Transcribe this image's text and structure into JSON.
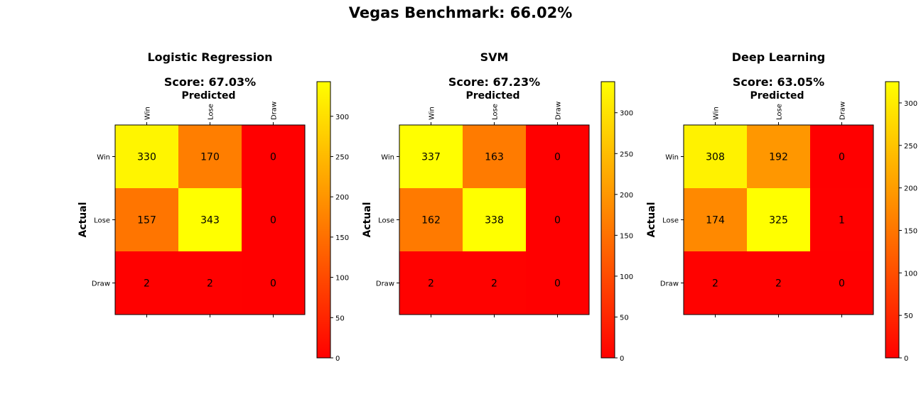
{
  "suptitle": "Vegas Benchmark: 66.02%",
  "colors": {
    "low": "#ff0000",
    "high": "#ffff00",
    "frame": "#000000"
  },
  "colormap": "autumn",
  "chart_data": [
    {
      "type": "heatmap",
      "title": "Logistic Regression",
      "subtitle": "Score: 67.03%",
      "xlabel": "Predicted",
      "ylabel": "Actual",
      "x_categories": [
        "Win",
        "Lose",
        "Draw"
      ],
      "y_categories": [
        "Win",
        "Lose",
        "Draw"
      ],
      "values": [
        [
          330,
          170,
          0
        ],
        [
          157,
          343,
          0
        ],
        [
          2,
          2,
          0
        ]
      ],
      "colorbar": {
        "range": [
          0,
          343
        ],
        "ticks": [
          0,
          50,
          100,
          150,
          200,
          250,
          300
        ]
      }
    },
    {
      "type": "heatmap",
      "title": "SVM",
      "subtitle": "Score: 67.23%",
      "xlabel": "Predicted",
      "ylabel": "Actual",
      "x_categories": [
        "Win",
        "Lose",
        "Draw"
      ],
      "y_categories": [
        "Win",
        "Lose",
        "Draw"
      ],
      "values": [
        [
          337,
          163,
          0
        ],
        [
          162,
          338,
          0
        ],
        [
          2,
          2,
          0
        ]
      ],
      "colorbar": {
        "range": [
          0,
          338
        ],
        "ticks": [
          0,
          50,
          100,
          150,
          200,
          250,
          300
        ]
      }
    },
    {
      "type": "heatmap",
      "title": "Deep Learning",
      "subtitle": "Score: 63.05%",
      "xlabel": "Predicted",
      "ylabel": "Actual",
      "x_categories": [
        "Win",
        "Lose",
        "Draw"
      ],
      "y_categories": [
        "Win",
        "Lose",
        "Draw"
      ],
      "values": [
        [
          308,
          192,
          0
        ],
        [
          174,
          325,
          1
        ],
        [
          2,
          2,
          0
        ]
      ],
      "colorbar": {
        "range": [
          0,
          325
        ],
        "ticks": [
          0,
          50,
          100,
          150,
          200,
          250,
          300
        ]
      }
    }
  ]
}
